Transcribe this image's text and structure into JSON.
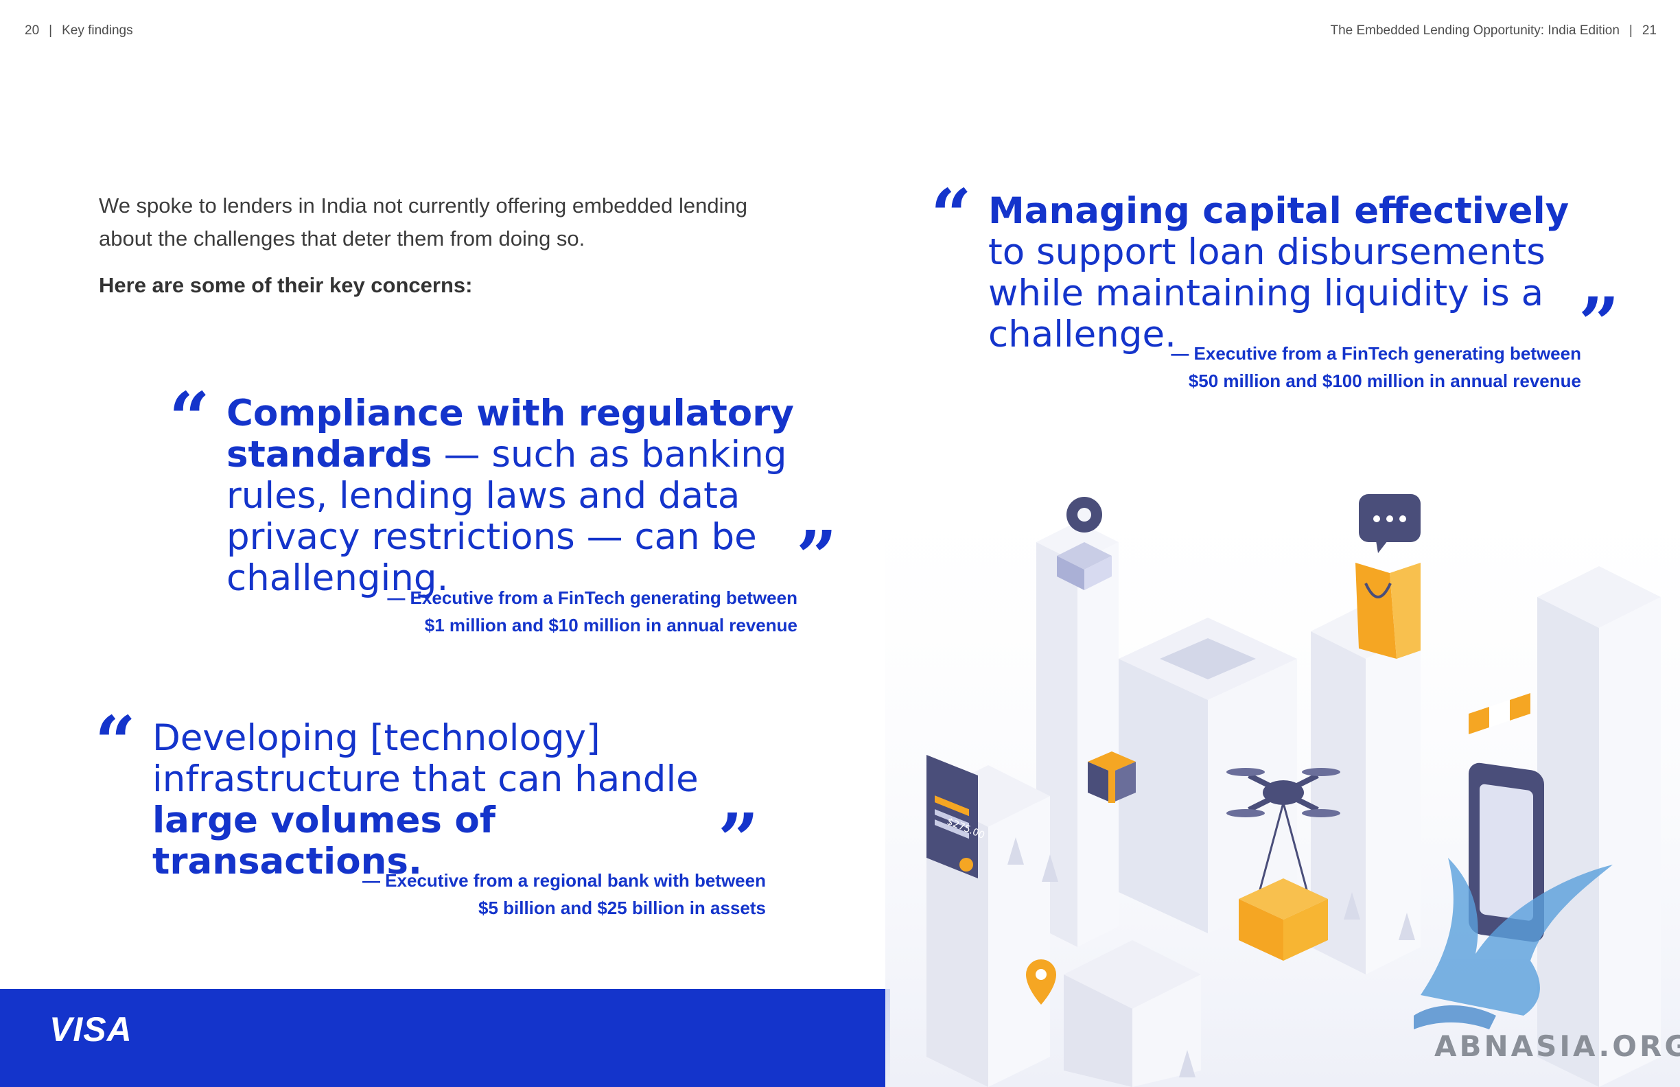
{
  "header": {
    "left_page_number": "20",
    "left_section": "Key findings",
    "right_title": "The Embedded Lending Opportunity: India Edition",
    "right_page_number": "21",
    "separator": "|"
  },
  "intro": {
    "text": "We spoke to lenders in India not currently offering embedded lending about the challenges that deter them from doing so.",
    "concerns_heading": "Here are some of their key concerns:"
  },
  "quotes": [
    {
      "bold": "Compliance with regulatory standards",
      "regular": " — such as banking rules, lending laws and data privacy restrictions — can be challenging.",
      "attribution_line1": "— Executive from a FinTech generating between",
      "attribution_line2": "$1 million and $10 million in annual revenue"
    },
    {
      "regular": "Developing [technology] infrastructure that can handle ",
      "bold": "large volumes of transactions.",
      "attribution_line1": "— Executive from a regional bank with between",
      "attribution_line2": "$5 billion and $25 billion in assets"
    },
    {
      "bold": "Managing capital effectively",
      "regular": " to support loan disbursements while maintaining liquidity is a challenge.",
      "attribution_line1": "— Executive from a FinTech generating between",
      "attribution_line2": "$50 million and $100 million in annual revenue"
    }
  ],
  "quote_marks": {
    "open": "“",
    "close": "”"
  },
  "footer": {
    "logo_text": "VISA"
  },
  "illustration": {
    "price_tag": "$275.00"
  },
  "watermark": "ABNASIA.ORG",
  "colors": {
    "brand_blue": "#1434cb",
    "gold": "#f5a623",
    "slate": "#4a4e7a"
  }
}
